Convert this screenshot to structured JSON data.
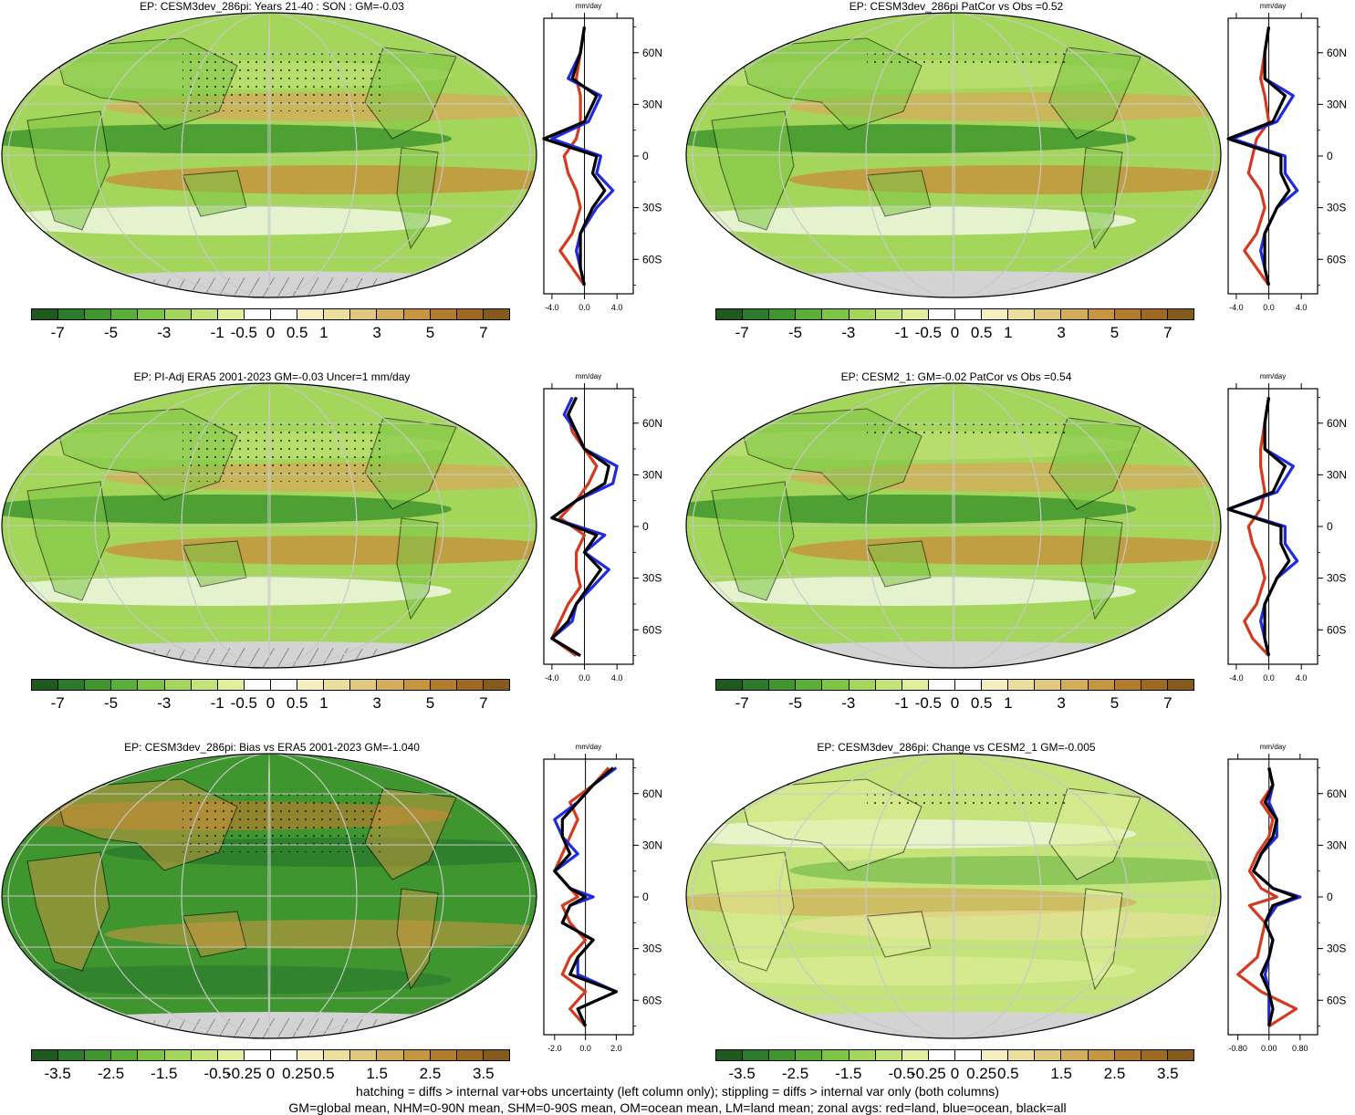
{
  "colors": {
    "scale": [
      "#1e5a1e",
      "#2c7a2c",
      "#3f962f",
      "#5aae39",
      "#7ec545",
      "#a3d65a",
      "#c4e37a",
      "#e0ef9c",
      "#ffffff",
      "#ffffff",
      "#f4eec0",
      "#ecdf9e",
      "#e0c97c",
      "#d3ae5a",
      "#c5953f",
      "#b37c2c",
      "#9e6a22",
      "#845a1d"
    ],
    "land_line": "#d43a1f",
    "ocean_line": "#1f2be0",
    "all_line": "#000000",
    "missing": "#d3d3d3"
  },
  "colorbar_labels_a": [
    "-7",
    "-5",
    "-3",
    "-1",
    "-0.5",
    "0",
    "0.5",
    "1",
    "3",
    "5",
    "7"
  ],
  "colorbar_labels_b": [
    "-3.5",
    "-2.5",
    "-1.5",
    "-0.5",
    "-0.25",
    "0",
    "0.25",
    "0.5",
    "1.5",
    "2.5",
    "3.5"
  ],
  "lat_labels": [
    "60N",
    "30N",
    "0",
    "30S",
    "60S"
  ],
  "profile_unit": "mm/day",
  "panels": [
    {
      "title": "EP: CESM3dev_286pi: Years 21-40 : SON : GM=-0.03",
      "xticks": [
        "-4.0",
        "0.0",
        "4.0"
      ],
      "xrange": [
        -5,
        6
      ],
      "cbar": "a",
      "stipple": "heavy",
      "hatch": true
    },
    {
      "title": "EP: CESM3dev_286pi PatCor vs Obs =0.52",
      "xticks": [
        "-4.0",
        "0.0",
        "4.0"
      ],
      "xrange": [
        -5,
        6
      ],
      "cbar": "a",
      "stipple": "light",
      "hatch": false
    },
    {
      "title": "EP: PI-Adj ERA5 2001-2023 GM=-0.03 Uncer=1 mm/day",
      "xticks": [
        "-4.0",
        "0.0",
        "4.0"
      ],
      "xrange": [
        -5,
        6
      ],
      "cbar": "a",
      "stipple": "heavy",
      "hatch": true
    },
    {
      "title": "EP: CESM2_1: GM=-0.02 PatCor vs Obs =0.54",
      "xticks": [
        "-4.0",
        "0.0",
        "4.0"
      ],
      "xrange": [
        -5,
        6
      ],
      "cbar": "a",
      "stipple": "light",
      "hatch": false
    },
    {
      "title": "EP: CESM3dev_286pi: Bias vs ERA5 2001-2023  GM=-1.040",
      "xticks": [
        "-2.0",
        "0.0",
        "2.0"
      ],
      "xrange": [
        -2.7,
        3.1
      ],
      "cbar": "b",
      "stipple": "heavy",
      "hatch": true
    },
    {
      "title": "EP: CESM3dev_286pi: Change vs CESM2_1 GM=-0.005",
      "xticks": [
        "-0.80",
        "0.00",
        "0.80"
      ],
      "xrange": [
        -1.05,
        1.25
      ],
      "cbar": "b",
      "stipple": "light",
      "hatch": false
    }
  ],
  "chart_data": [
    {
      "type": "line",
      "title": "EP: CESM3dev_286pi: Years 21-40 : SON : GM=-0.03",
      "xlabel": "mm/day",
      "ylabel": "",
      "ylim": [
        -80,
        80
      ],
      "y": [
        75,
        60,
        45,
        35,
        20,
        10,
        0,
        -10,
        -20,
        -30,
        -45,
        -55,
        -65,
        -75
      ],
      "series": [
        {
          "name": "land",
          "values": [
            0,
            -0.5,
            -1,
            -0.5,
            -0.5,
            -1,
            -2.5,
            -2,
            -1,
            -0.5,
            -1.5,
            -3,
            -1.5,
            0
          ]
        },
        {
          "name": "ocean",
          "values": [
            0,
            -0.5,
            -2,
            2,
            0.5,
            -4,
            2,
            1.5,
            3.5,
            1.5,
            -0.5,
            -1,
            -0.5,
            0
          ]
        },
        {
          "name": "all",
          "values": [
            0,
            -0.5,
            -1.5,
            1.5,
            0,
            -5,
            1.5,
            1,
            2.5,
            1,
            -0.5,
            -0.5,
            -0.5,
            0
          ]
        }
      ]
    },
    {
      "type": "line",
      "title": "EP: CESM3dev_286pi PatCor vs Obs =0.52",
      "xlabel": "mm/day",
      "ylabel": "",
      "ylim": [
        -80,
        80
      ],
      "y": [
        75,
        60,
        45,
        35,
        20,
        10,
        0,
        -10,
        -20,
        -30,
        -45,
        -55,
        -65,
        -75
      ],
      "series": [
        {
          "name": "land",
          "values": [
            0,
            -0.5,
            -1,
            -0.5,
            0,
            -1.5,
            -2,
            -2.5,
            -1,
            -0.5,
            -1.5,
            -3,
            -1.5,
            0
          ]
        },
        {
          "name": "ocean",
          "values": [
            0,
            -0.5,
            -0.5,
            3,
            1,
            -4.5,
            2,
            2,
            3.5,
            1,
            -0.5,
            -1,
            -0.5,
            0
          ]
        },
        {
          "name": "all",
          "values": [
            0,
            -0.5,
            -0.5,
            2,
            0.5,
            -5,
            1.5,
            1.5,
            2.5,
            1,
            -0.5,
            -0.5,
            -0.5,
            0
          ]
        }
      ]
    },
    {
      "type": "line",
      "title": "EP: PI-Adj ERA5 2001-2023 GM=-0.03 Uncer=1 mm/day",
      "xlabel": "mm/day",
      "ylabel": "",
      "ylim": [
        -80,
        80
      ],
      "y": [
        75,
        65,
        55,
        45,
        35,
        25,
        15,
        5,
        -5,
        -15,
        -25,
        -35,
        -45,
        -55,
        -65,
        -75
      ],
      "series": [
        {
          "name": "land",
          "values": [
            -1,
            -2,
            -1.5,
            0,
            1.5,
            0.5,
            -1,
            -3,
            0,
            -1,
            -1,
            -0.5,
            -2,
            -3,
            -4,
            -1
          ]
        },
        {
          "name": "ocean",
          "values": [
            -1.5,
            -2.5,
            -1,
            0,
            4,
            3.5,
            -1,
            -4,
            2.5,
            0,
            3,
            1,
            -1,
            -1.5,
            -4,
            -0.5
          ]
        },
        {
          "name": "all",
          "values": [
            -1,
            -2,
            -1,
            0,
            3,
            2.5,
            -1,
            -4,
            1.5,
            0,
            2,
            0.5,
            -1,
            -2,
            -4,
            -0.5
          ]
        }
      ]
    },
    {
      "type": "line",
      "title": "EP: CESM2_1: GM=-0.02 PatCor vs Obs =0.54",
      "xlabel": "mm/day",
      "ylabel": "",
      "ylim": [
        -80,
        80
      ],
      "y": [
        75,
        60,
        45,
        35,
        20,
        10,
        0,
        -10,
        -20,
        -30,
        -45,
        -55,
        -65,
        -75
      ],
      "series": [
        {
          "name": "land",
          "values": [
            0,
            -0.5,
            -1,
            -1,
            -0.5,
            -1,
            -2.5,
            -2,
            -1,
            -0.5,
            -1.5,
            -3,
            -2,
            0
          ]
        },
        {
          "name": "ocean",
          "values": [
            0,
            -0.5,
            -0.5,
            3,
            1,
            -5,
            2,
            2,
            3.5,
            1,
            -0.5,
            -1,
            -0.5,
            0
          ]
        },
        {
          "name": "all",
          "values": [
            0,
            -0.5,
            -0.5,
            2,
            0.5,
            -5,
            1.5,
            1.5,
            2.5,
            1,
            -0.5,
            -0.5,
            -0.5,
            0
          ]
        }
      ]
    },
    {
      "type": "line",
      "title": "EP: CESM3dev_286pi: Bias vs ERA5 2001-2023  GM=-1.040",
      "xlabel": "mm/day",
      "ylabel": "",
      "ylim": [
        -80,
        80
      ],
      "y": [
        75,
        65,
        55,
        45,
        35,
        25,
        15,
        5,
        0,
        -5,
        -15,
        -25,
        -35,
        -45,
        -55,
        -65,
        -75
      ],
      "series": [
        {
          "name": "land",
          "values": [
            1.5,
            0.5,
            -1,
            -0.5,
            -1,
            -1.5,
            -2,
            -1,
            -0.5,
            -1.5,
            -1,
            0,
            -1,
            -1.5,
            0,
            -1,
            0
          ]
        },
        {
          "name": "ocean",
          "values": [
            2,
            0.5,
            -0.5,
            -2,
            -1.5,
            -0.5,
            -2,
            -1,
            0.5,
            -1,
            -1.5,
            0.5,
            -0.5,
            -0.5,
            2,
            -0.5,
            0
          ]
        },
        {
          "name": "all",
          "values": [
            1.8,
            0.5,
            -0.5,
            -1.5,
            -1.5,
            -1,
            -2,
            -1,
            0,
            -1,
            -1.5,
            0.5,
            -0.5,
            -1,
            2,
            -0.5,
            0
          ]
        }
      ]
    },
    {
      "type": "line",
      "title": "EP: CESM3dev_286pi: Change vs CESM2_1 GM=-0.005",
      "xlabel": "mm/day",
      "ylabel": "",
      "ylim": [
        -80,
        80
      ],
      "y": [
        75,
        65,
        55,
        45,
        35,
        25,
        15,
        5,
        0,
        -5,
        -15,
        -25,
        -35,
        -45,
        -55,
        -65,
        -75
      ],
      "series": [
        {
          "name": "land",
          "values": [
            0,
            0.1,
            -0.2,
            0.1,
            0,
            -0.3,
            -0.5,
            -0.2,
            0.2,
            -0.5,
            -0.1,
            -0.2,
            -0.3,
            -0.8,
            -0.2,
            0.7,
            0
          ]
        },
        {
          "name": "ocean",
          "values": [
            0,
            0.1,
            0,
            0.2,
            0.2,
            -0.2,
            -0.4,
            0.1,
            0.8,
            0.2,
            -0.1,
            0.1,
            0,
            -0.1,
            0,
            0,
            0
          ]
        },
        {
          "name": "all",
          "values": [
            0,
            0.1,
            -0.1,
            0.2,
            0.1,
            -0.2,
            -0.4,
            0.1,
            0.7,
            0.1,
            -0.1,
            0.1,
            0,
            -0.2,
            0,
            0.1,
            0
          ]
        }
      ]
    }
  ],
  "footer_lines": [
    "hatching = diffs > internal var+obs uncertainty (left column only); stippling = diffs > internal var only (both columns)",
    "GM=global mean, NHM=0-90N mean, SHM=0-90S mean, OM=ocean mean, LM=land mean; zonal avgs: red=land, blue=ocean, black=all"
  ]
}
